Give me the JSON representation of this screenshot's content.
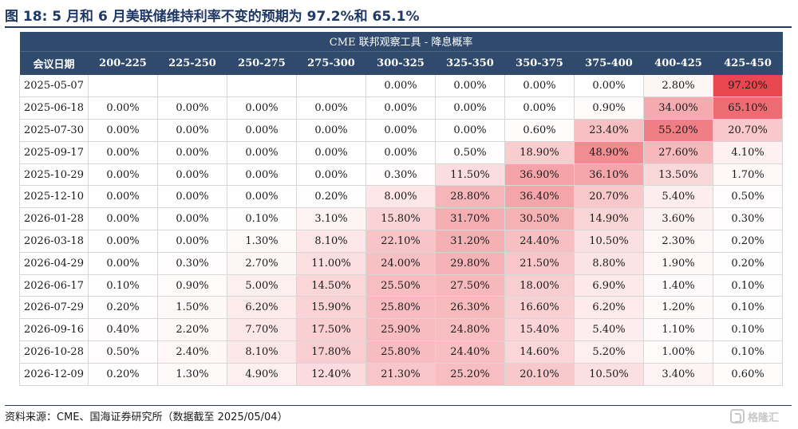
{
  "figure": {
    "title": "图 18:  5 月和 6 月美联储维持利率不变的预期为 97.2%和 65.1%",
    "source": "资料来源：CME、国海证券研究所（数据截至 2025/05/04）",
    "watermark": "格隆汇"
  },
  "table": {
    "band_title": "CME 联邦观察工具 - 降息概率",
    "headers": [
      "会议日期",
      "200-225",
      "225-250",
      "250-275",
      "275-300",
      "300-325",
      "325-350",
      "350-375",
      "375-400",
      "400-425",
      "425-450"
    ],
    "heat_color": "#e8474f",
    "rows": [
      {
        "date": "2025-05-07",
        "cells": [
          "",
          "",
          "",
          "",
          "0.00%",
          "0.00%",
          "0.00%",
          "0.00%",
          "2.80%",
          "97.20%"
        ]
      },
      {
        "date": "2025-06-18",
        "cells": [
          "0.00%",
          "0.00%",
          "0.00%",
          "0.00%",
          "0.00%",
          "0.00%",
          "0.00%",
          "0.90%",
          "34.00%",
          "65.10%"
        ]
      },
      {
        "date": "2025-07-30",
        "cells": [
          "0.00%",
          "0.00%",
          "0.00%",
          "0.00%",
          "0.00%",
          "0.00%",
          "0.60%",
          "23.40%",
          "55.20%",
          "20.70%"
        ]
      },
      {
        "date": "2025-09-17",
        "cells": [
          "0.00%",
          "0.00%",
          "0.00%",
          "0.00%",
          "0.00%",
          "0.50%",
          "18.90%",
          "48.90%",
          "27.60%",
          "4.10%"
        ]
      },
      {
        "date": "2025-10-29",
        "cells": [
          "0.00%",
          "0.00%",
          "0.00%",
          "0.00%",
          "0.30%",
          "11.50%",
          "36.90%",
          "36.10%",
          "13.50%",
          "1.70%"
        ]
      },
      {
        "date": "2025-12-10",
        "cells": [
          "0.00%",
          "0.00%",
          "0.00%",
          "0.20%",
          "8.00%",
          "28.80%",
          "36.40%",
          "20.70%",
          "5.40%",
          "0.50%"
        ]
      },
      {
        "date": "2026-01-28",
        "cells": [
          "0.00%",
          "0.00%",
          "0.10%",
          "3.10%",
          "15.80%",
          "31.70%",
          "30.50%",
          "14.90%",
          "3.60%",
          "0.30%"
        ]
      },
      {
        "date": "2026-03-18",
        "cells": [
          "0.00%",
          "0.00%",
          "1.30%",
          "8.10%",
          "22.10%",
          "31.20%",
          "24.40%",
          "10.50%",
          "2.30%",
          "0.20%"
        ]
      },
      {
        "date": "2026-04-29",
        "cells": [
          "0.00%",
          "0.30%",
          "2.70%",
          "11.00%",
          "24.00%",
          "29.80%",
          "21.50%",
          "8.80%",
          "1.90%",
          "0.20%"
        ]
      },
      {
        "date": "2026-06-17",
        "cells": [
          "0.10%",
          "0.90%",
          "5.00%",
          "14.50%",
          "25.50%",
          "27.50%",
          "18.00%",
          "6.90%",
          "1.40%",
          "0.10%"
        ]
      },
      {
        "date": "2026-07-29",
        "cells": [
          "0.20%",
          "1.50%",
          "6.20%",
          "15.90%",
          "25.80%",
          "26.30%",
          "16.60%",
          "6.20%",
          "1.20%",
          "0.10%"
        ]
      },
      {
        "date": "2026-09-16",
        "cells": [
          "0.40%",
          "2.20%",
          "7.70%",
          "17.50%",
          "25.90%",
          "24.80%",
          "15.40%",
          "5.40%",
          "1.10%",
          "0.10%"
        ]
      },
      {
        "date": "2026-10-28",
        "cells": [
          "0.50%",
          "2.40%",
          "8.10%",
          "17.80%",
          "25.80%",
          "24.40%",
          "14.60%",
          "5.20%",
          "1.00%",
          "0.10%"
        ]
      },
      {
        "date": "2026-12-09",
        "cells": [
          "0.20%",
          "1.30%",
          "4.90%",
          "12.40%",
          "21.30%",
          "25.20%",
          "20.10%",
          "10.50%",
          "3.40%",
          "0.60%"
        ]
      }
    ]
  }
}
